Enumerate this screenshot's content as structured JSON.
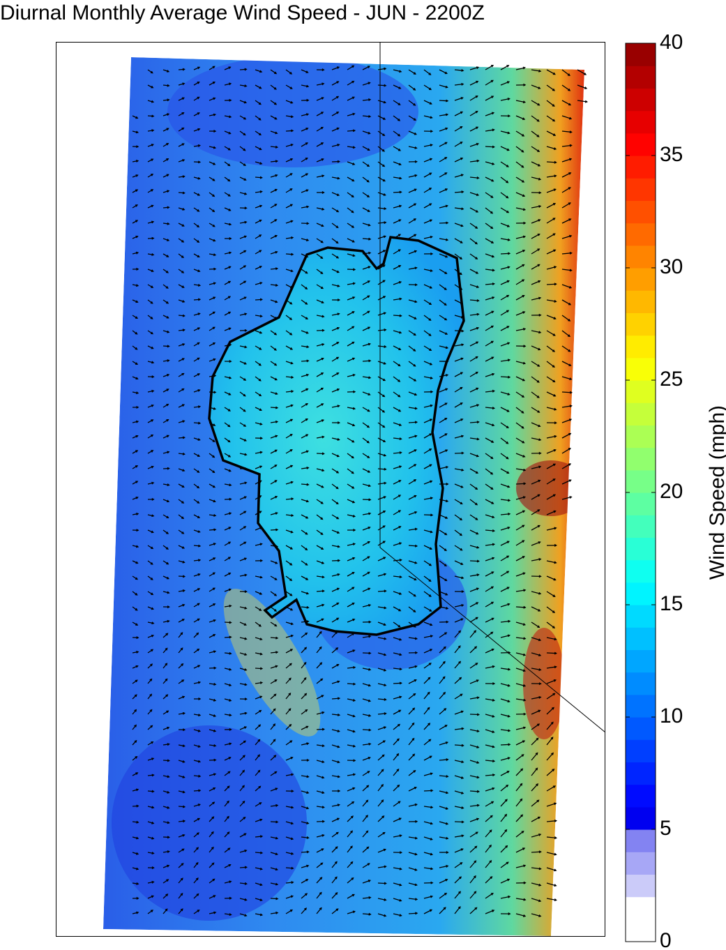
{
  "title": "Diurnal Monthly Average Wind Speed - JUN - 2200Z",
  "colorbar": {
    "label": "Wind Speed (mph)",
    "lim": [
      0,
      40
    ],
    "ticks": [
      0,
      5,
      10,
      15,
      20,
      25,
      30,
      35,
      40
    ]
  }
}
